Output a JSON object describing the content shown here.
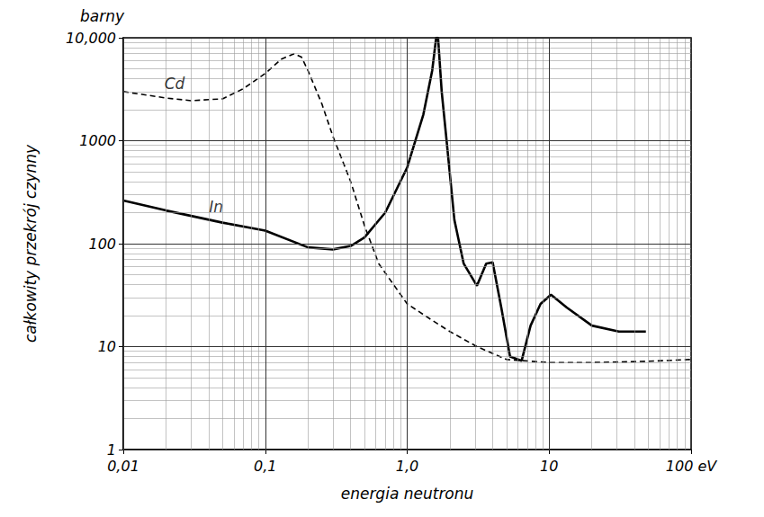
{
  "chart_data": {
    "type": "line",
    "y_unit_label": "barny",
    "ylabel": "całkowity przekrój czynny",
    "xlabel": "energia neutronu",
    "log": true,
    "grid": true,
    "xlim": [
      0.01,
      100
    ],
    "xticks": [
      {
        "value": 0.01,
        "label": "0,01"
      },
      {
        "value": 0.1,
        "label": "0,1"
      },
      {
        "value": 1,
        "label": "1,0"
      },
      10,
      {
        "value": 100,
        "label": "100 eV"
      }
    ],
    "ylim": [
      1,
      10000
    ],
    "yticks": [
      1,
      10,
      100,
      1000,
      {
        "value": 10000,
        "label": "10,000"
      }
    ],
    "series": [
      {
        "name": "Cd",
        "color": "#000000",
        "line_style": "dashed",
        "x": [
          0.01,
          0.02,
          0.03,
          0.05,
          0.07,
          0.1,
          0.13,
          0.16,
          0.18,
          0.2,
          0.25,
          0.3,
          0.4,
          0.5,
          0.63,
          1.0,
          1.5,
          2.0,
          3.1,
          5.0,
          10,
          20,
          50,
          100
        ],
        "values": [
          3000,
          2600,
          2450,
          2550,
          3200,
          4500,
          6200,
          7000,
          6500,
          4800,
          2300,
          1100,
          400,
          150,
          64,
          26,
          18,
          14,
          10,
          7.5,
          7,
          7,
          7.2,
          7.5
        ]
      },
      {
        "name": "In",
        "color": "#000000",
        "line_style": "solid",
        "x": [
          0.01,
          0.02,
          0.05,
          0.1,
          0.2,
          0.3,
          0.4,
          0.5,
          0.7,
          1.0,
          1.3,
          1.5,
          1.6,
          1.65,
          1.75,
          1.87,
          2.15,
          2.5,
          3.1,
          3.6,
          4.0,
          4.6,
          5.3,
          6.4,
          7.4,
          8.7,
          10.3,
          13.3,
          20,
          31,
          48
        ],
        "values": [
          262,
          210,
          160,
          134,
          92,
          88,
          95,
          115,
          200,
          550,
          1800,
          4800,
          10000,
          10000,
          3000,
          1200,
          170,
          64,
          39,
          64,
          66,
          24,
          8,
          7.3,
          16,
          26,
          32,
          24,
          16,
          14,
          14
        ]
      }
    ],
    "annotations": [
      {
        "text": "Cd",
        "x": 0.023,
        "y": 3600
      },
      {
        "text": "In",
        "x": 0.045,
        "y": 230
      }
    ]
  }
}
